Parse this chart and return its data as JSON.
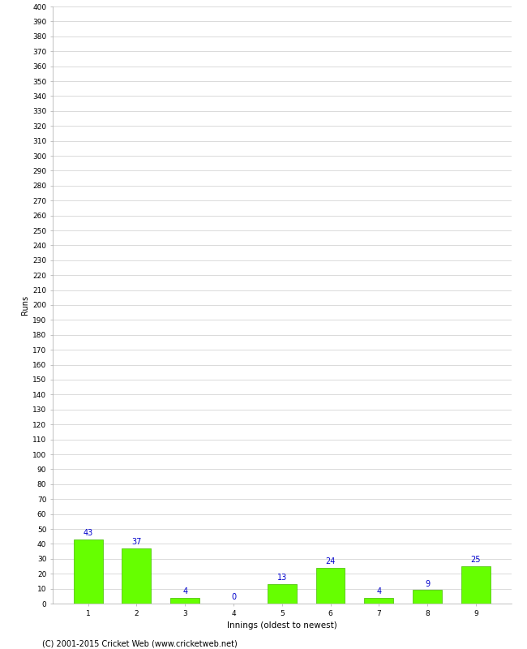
{
  "categories": [
    "1",
    "2",
    "3",
    "4",
    "5",
    "6",
    "7",
    "8",
    "9"
  ],
  "values": [
    43,
    37,
    4,
    0,
    13,
    24,
    4,
    9,
    25
  ],
  "bar_color": "#66ff00",
  "bar_edgecolor": "#44bb00",
  "label_color": "#0000cc",
  "xlabel": "Innings (oldest to newest)",
  "ylabel": "Runs",
  "ylim": [
    0,
    400
  ],
  "ytick_step": 10,
  "background_color": "#ffffff",
  "grid_color": "#cccccc",
  "footer": "(C) 2001-2015 Cricket Web (www.cricketweb.net)",
  "label_fontsize": 7,
  "axis_tick_fontsize": 6.5,
  "ylabel_fontsize": 7,
  "xlabel_fontsize": 7.5,
  "footer_fontsize": 7
}
